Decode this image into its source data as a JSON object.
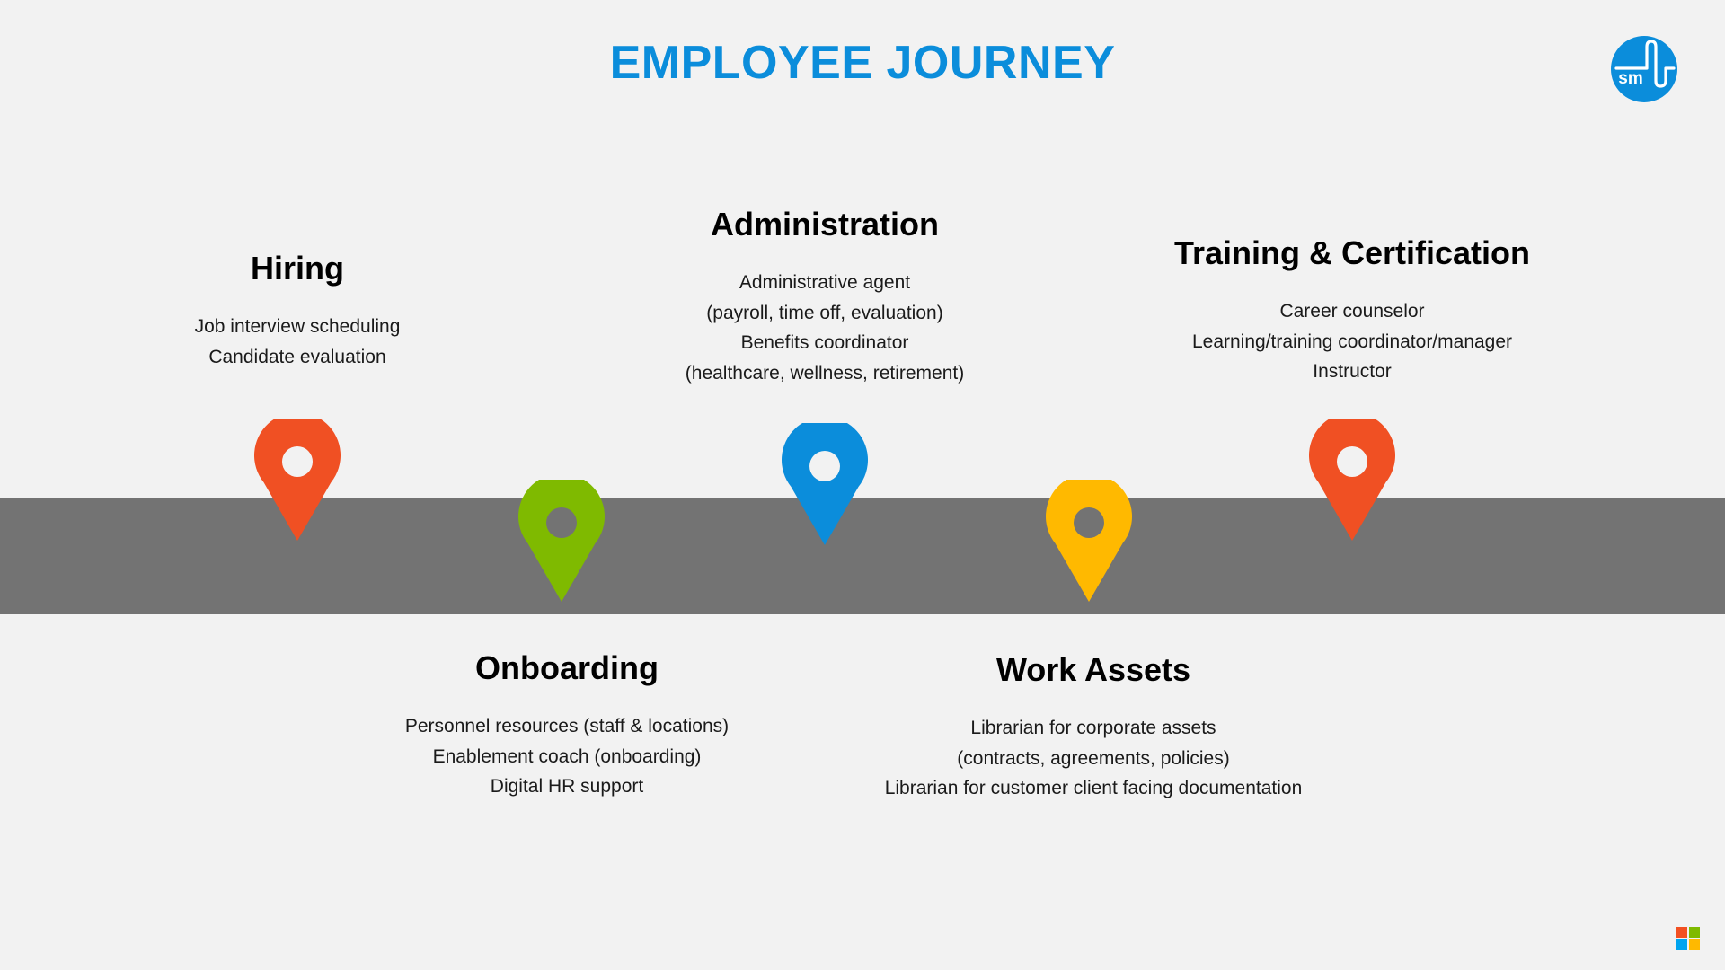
{
  "page": {
    "title": "EMPLOYEE JOURNEY",
    "logo_text": "sm",
    "brand_logo_icon": "microsoft-logo-icon"
  },
  "colors": {
    "title": "#0b8ddb",
    "road": "#737373",
    "background": "#f2f2f2",
    "logo": "#0b8ddb"
  },
  "stages": [
    {
      "id": "hiring",
      "heading": "Hiring",
      "lines": [
        "Job interview scheduling",
        "Candidate evaluation"
      ],
      "pin_color": "#f05023",
      "pin_hole_color": "#f2f2f2",
      "icon": "map-pin-icon"
    },
    {
      "id": "onboarding",
      "heading": "Onboarding",
      "lines": [
        "Personnel resources (staff & locations)",
        "Enablement coach (onboarding)",
        "Digital HR support"
      ],
      "pin_color": "#7fba00",
      "pin_hole_color": "#737373",
      "icon": "map-pin-icon"
    },
    {
      "id": "administration",
      "heading": "Administration",
      "lines": [
        "Administrative agent",
        "(payroll, time off, evaluation)",
        "Benefits coordinator",
        "(healthcare, wellness, retirement)"
      ],
      "pin_color": "#0b8ddb",
      "pin_hole_color": "#f2f2f2",
      "icon": "map-pin-icon"
    },
    {
      "id": "work-assets",
      "heading": "Work Assets",
      "lines": [
        "Librarian for corporate assets",
        "(contracts, agreements, policies)",
        "Librarian for customer client facing documentation"
      ],
      "pin_color": "#ffb900",
      "pin_hole_color": "#737373",
      "icon": "map-pin-icon"
    },
    {
      "id": "training",
      "heading": "Training & Certification",
      "lines": [
        "Career counselor",
        "Learning/training coordinator/manager",
        "Instructor"
      ],
      "pin_color": "#f05023",
      "pin_hole_color": "#f2f2f2",
      "icon": "map-pin-icon"
    }
  ]
}
